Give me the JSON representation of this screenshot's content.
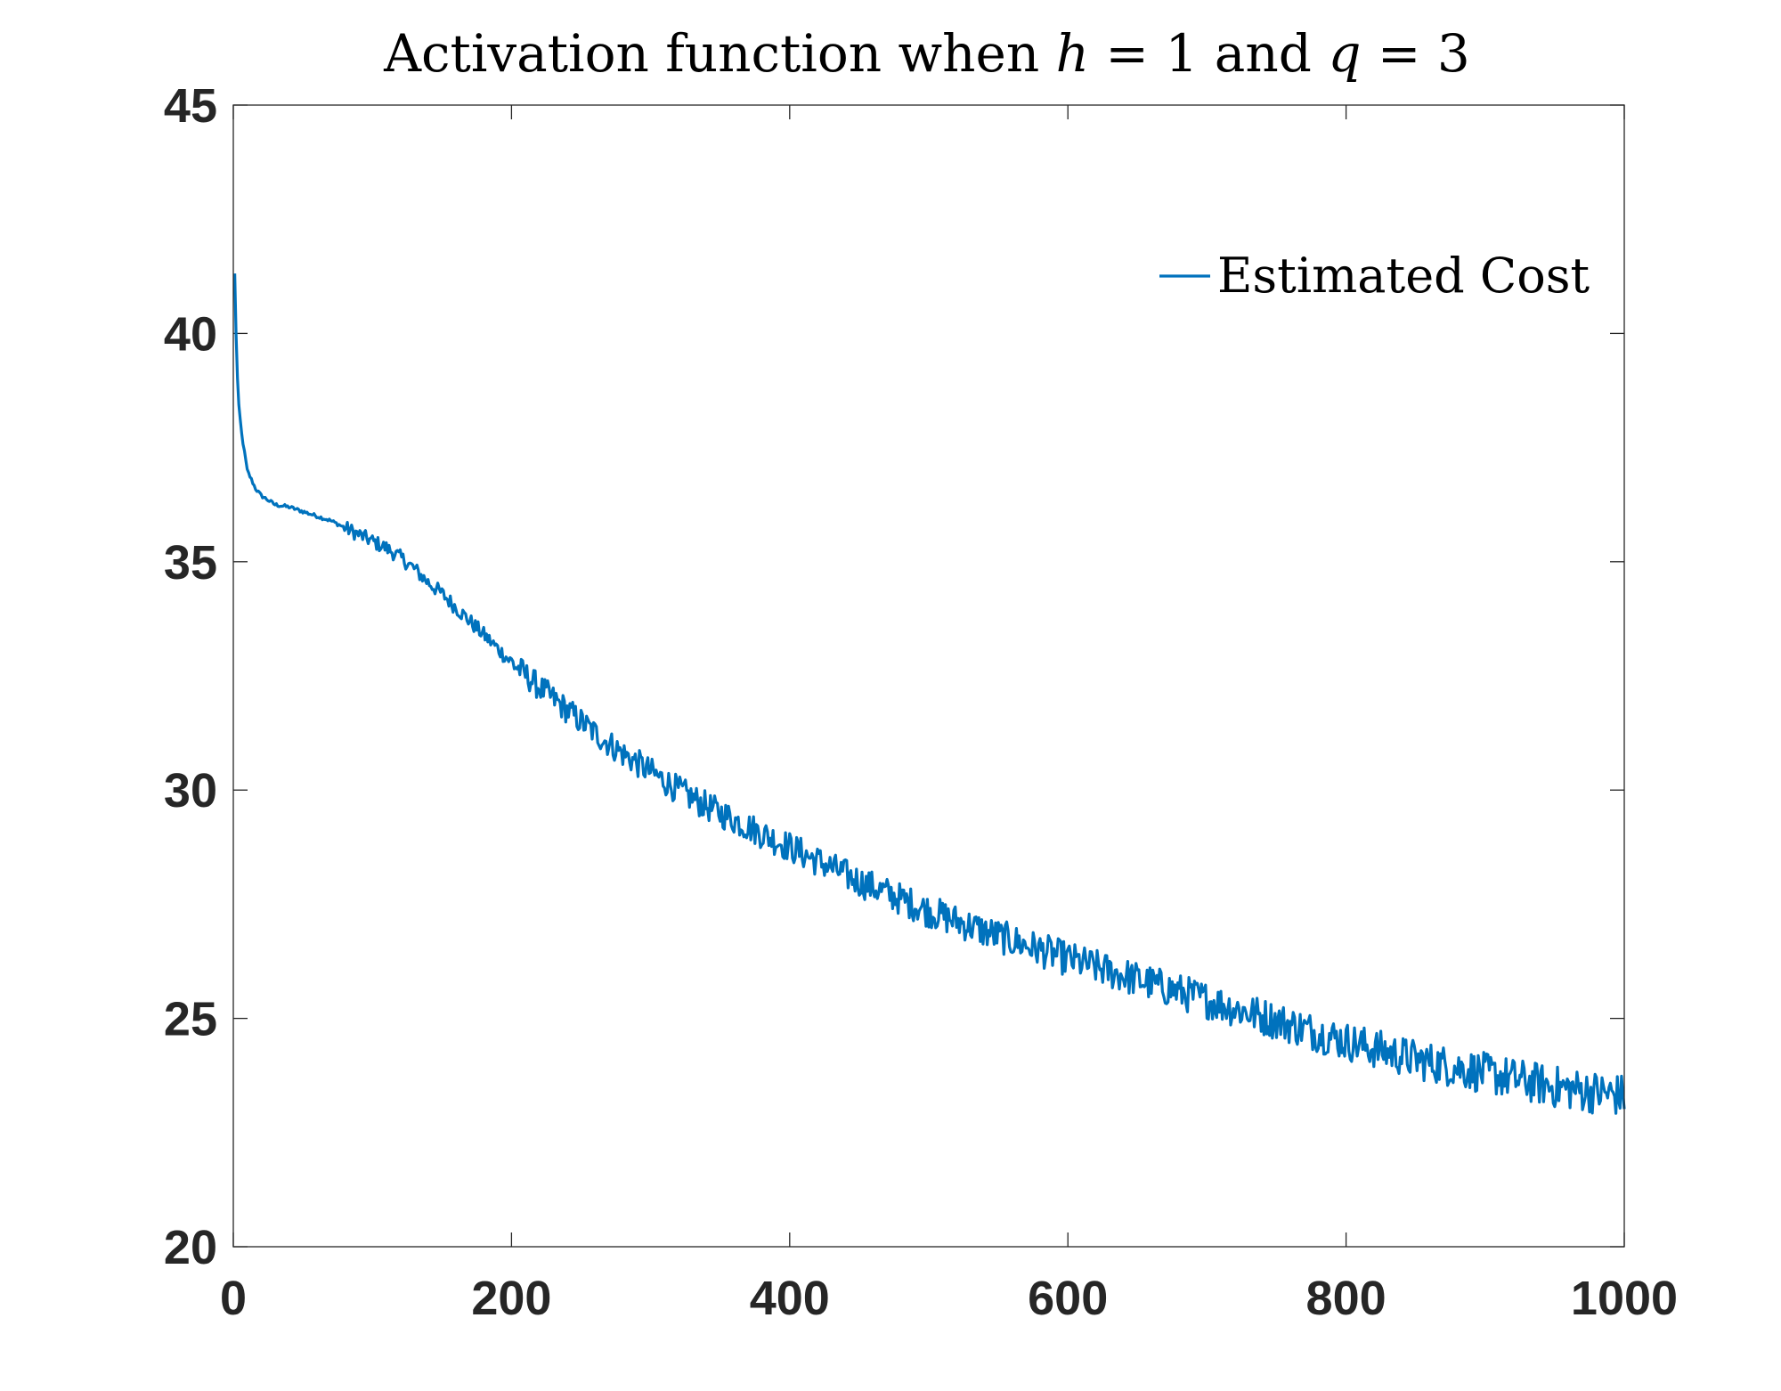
{
  "chart_data": {
    "type": "line",
    "title_parts": {
      "prefix": "Activation function when ",
      "var1": "h",
      "eq1": " = 1 and ",
      "var2": "q",
      "eq2": " = 3"
    },
    "xlabel": "",
    "ylabel": "",
    "xlim": [
      0,
      1000
    ],
    "ylim": [
      20,
      45
    ],
    "xticks": [
      0,
      200,
      400,
      600,
      800,
      1000
    ],
    "yticks": [
      20,
      25,
      30,
      35,
      40,
      45
    ],
    "grid": false,
    "legend": {
      "position": "top-right",
      "entries": [
        "Estimated Cost"
      ]
    },
    "series": [
      {
        "name": "Estimated Cost",
        "color": "#0072BD",
        "noise_amplitude": 0.35,
        "anchor_points": {
          "x": [
            1,
            2,
            3,
            4,
            6,
            8,
            10,
            13,
            16,
            20,
            25,
            30,
            40,
            50,
            60,
            70,
            80,
            90,
            100,
            110,
            120,
            130,
            140,
            150,
            160,
            170,
            180,
            190,
            200,
            220,
            240,
            260,
            280,
            300,
            320,
            340,
            360,
            380,
            400,
            450,
            500,
            550,
            600,
            650,
            700,
            750,
            800,
            850,
            900,
            950,
            1000
          ],
          "y": [
            41.3,
            40.0,
            39.0,
            38.4,
            37.8,
            37.4,
            37.0,
            36.8,
            36.6,
            36.45,
            36.35,
            36.25,
            36.2,
            36.1,
            36.0,
            35.9,
            35.75,
            35.6,
            35.45,
            35.3,
            35.1,
            34.85,
            34.55,
            34.3,
            34.0,
            33.7,
            33.4,
            33.1,
            32.8,
            32.25,
            31.75,
            31.25,
            30.8,
            30.4,
            30.0,
            29.65,
            29.35,
            29.05,
            28.75,
            28.0,
            27.35,
            26.8,
            26.3,
            25.85,
            25.4,
            24.95,
            24.5,
            24.1,
            23.8,
            23.5,
            23.3
          ]
        }
      }
    ]
  }
}
